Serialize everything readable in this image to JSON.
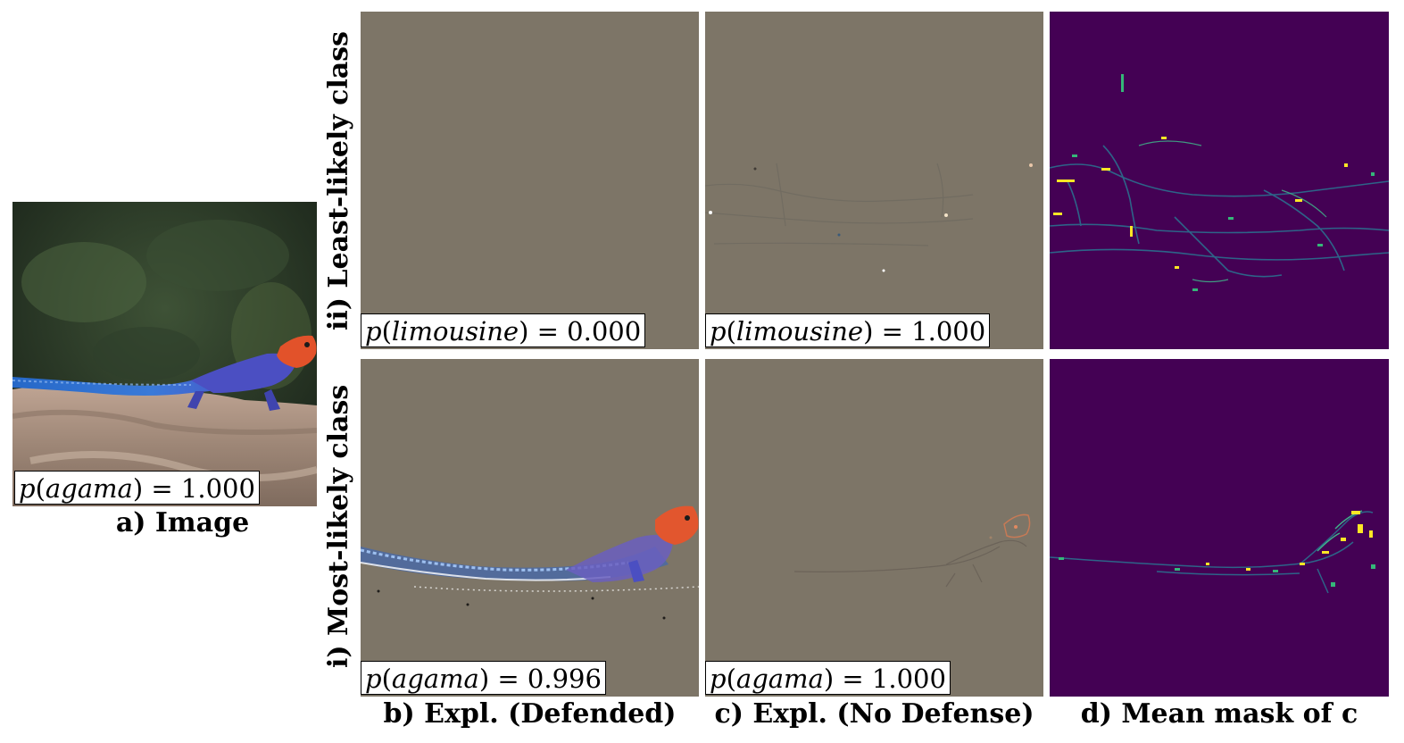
{
  "panels": {
    "image": {
      "caption": "a) Image",
      "prob_class": "agama",
      "prob_value": "1.000"
    },
    "columns": [
      {
        "caption": "b) Expl. (Defended)"
      },
      {
        "caption": "c) Expl. (No Defense)"
      },
      {
        "caption": "d) Mean mask of c"
      }
    ],
    "rows": [
      {
        "label": "ii) Least-likely class"
      },
      {
        "label": "i) Most-likely class"
      }
    ],
    "probs": {
      "ll_defended": {
        "cls": "limousine",
        "val": "0.000"
      },
      "ll_nodefense": {
        "cls": "limousine",
        "val": "1.000"
      },
      "ml_defended": {
        "cls": "agama",
        "val": "0.996"
      },
      "ml_nodefense": {
        "cls": "agama",
        "val": "1.000"
      }
    }
  },
  "colors": {
    "expl_background": "#7d7567",
    "mask_background": "#440154",
    "mask_highlight": "#fde725",
    "mask_mid": "#21918c",
    "lizard_blue": "#2f5fd0",
    "lizard_orange": "#e2522a"
  }
}
